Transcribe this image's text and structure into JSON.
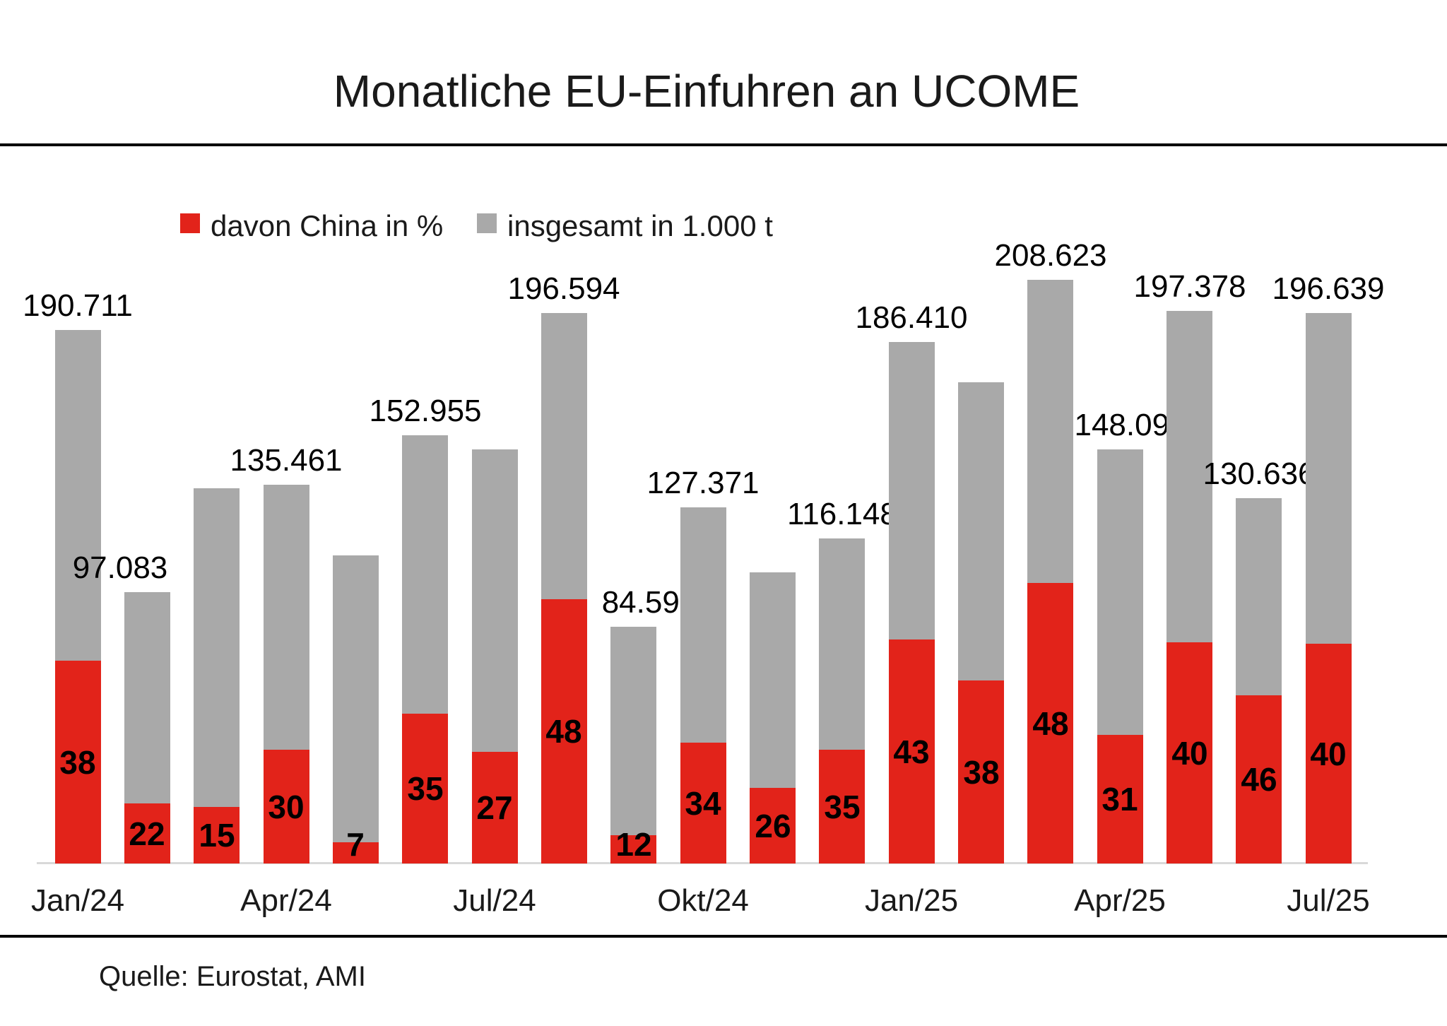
{
  "title": "Monatliche EU-Einfuhren an UCOME",
  "source": "Quelle: Eurostat, AMI",
  "legend": [
    {
      "label": "davon China in %",
      "color": "#e2231a"
    },
    {
      "label": "insgesamt in 1.000 t",
      "color": "#a9a9a9"
    }
  ],
  "colors": {
    "china_red": "#e2231a",
    "total_gray": "#a9a9a9",
    "axis_line_gray": "#d9d9d9",
    "rule_black": "#000000"
  },
  "chart_data": {
    "type": "bar",
    "subtype": "overlay-stacked: red bar = China share of total, drawn from baseline on same tonnage scale",
    "title": "Monatliche EU-Einfuhren an UCOME",
    "ylabel": "insgesamt in 1.000 t",
    "y2label": "davon China in %",
    "ylim": [
      0,
      208.623
    ],
    "grid": false,
    "legend_position": "top-left",
    "x_tick_labels": [
      "Jan/24",
      "Apr/24",
      "Jul/24",
      "Okt/24",
      "Jan/25",
      "Apr/25",
      "Jul/25"
    ],
    "x_tick_every_n_bars": 3,
    "bars": [
      {
        "month": "Jan/24",
        "total": 190.711,
        "total_label": "190.711",
        "china_pct": 38,
        "estimated_total": false,
        "label_dx": 0
      },
      {
        "month": "Feb/24",
        "total": 97.083,
        "total_label": "97.083",
        "china_pct": 22,
        "estimated_total": false,
        "label_dx": -38
      },
      {
        "month": "Mär/24",
        "total": 134,
        "total_label": null,
        "china_pct": 15,
        "estimated_total": true,
        "label_dx": 0
      },
      {
        "month": "Apr/24",
        "total": 135.461,
        "total_label": "135.461",
        "china_pct": 30,
        "estimated_total": false,
        "label_dx": 0
      },
      {
        "month": "Mai/24",
        "total": 110,
        "total_label": null,
        "china_pct": 7,
        "estimated_total": true,
        "label_dx": 0
      },
      {
        "month": "Jun/24",
        "total": 152.955,
        "total_label": "152.955",
        "china_pct": 35,
        "estimated_total": false,
        "label_dx": 0
      },
      {
        "month": "Jul/24",
        "total": 148,
        "total_label": null,
        "china_pct": 27,
        "estimated_total": true,
        "label_dx": 0
      },
      {
        "month": "Aug/24",
        "total": 196.594,
        "total_label": "196.594",
        "china_pct": 48,
        "estimated_total": false,
        "label_dx": 0
      },
      {
        "month": "Sep/24",
        "total": 84.595,
        "total_label": "84.595",
        "china_pct": 12,
        "estimated_total": false,
        "label_dx": 22
      },
      {
        "month": "Okt/24",
        "total": 127.371,
        "total_label": "127.371",
        "china_pct": 34,
        "estimated_total": false,
        "label_dx": 0
      },
      {
        "month": "Nov/24",
        "total": 104,
        "total_label": null,
        "china_pct": 26,
        "estimated_total": true,
        "label_dx": 0
      },
      {
        "month": "Dez/24",
        "total": 116.148,
        "total_label": "116.148",
        "china_pct": 35,
        "estimated_total": false,
        "label_dx": 0
      },
      {
        "month": "Jan/25",
        "total": 186.41,
        "total_label": "186.410",
        "china_pct": 43,
        "estimated_total": false,
        "label_dx": 0
      },
      {
        "month": "Feb/25",
        "total": 172,
        "total_label": null,
        "china_pct": 38,
        "estimated_total": true,
        "label_dx": 0
      },
      {
        "month": "Mär/25",
        "total": 208.623,
        "total_label": "208.623",
        "china_pct": 48,
        "estimated_total": false,
        "label_dx": 0
      },
      {
        "month": "Apr/25",
        "total": 148.093,
        "total_label": "148.093",
        "china_pct": 31,
        "estimated_total": false,
        "label_dx": 15
      },
      {
        "month": "Mai/25",
        "total": 197.378,
        "total_label": "197.378",
        "china_pct": 40,
        "estimated_total": false,
        "label_dx": 0
      },
      {
        "month": "Jun/25",
        "total": 130.636,
        "total_label": "130.636",
        "china_pct": 46,
        "estimated_total": false,
        "label_dx": 0
      },
      {
        "month": "Jul/25",
        "total": 196.639,
        "total_label": "196.639",
        "china_pct": 40,
        "estimated_total": false,
        "label_dx": 0
      }
    ]
  }
}
